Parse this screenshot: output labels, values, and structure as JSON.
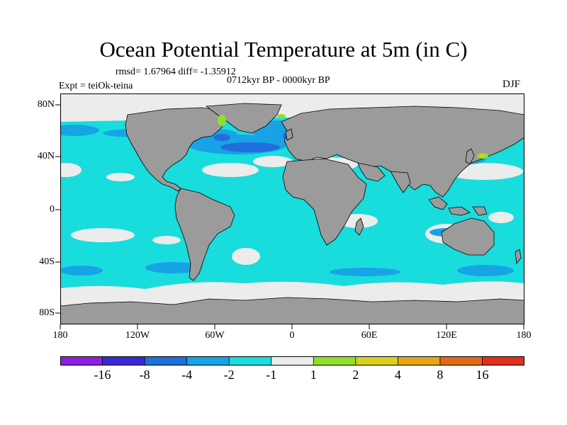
{
  "title": "Ocean Potential Temperature at 5m (in C)",
  "stats": "rmsd= 1.67964  diff= -1.35912",
  "period": "0712kyr BP - 0000kyr BP",
  "experiment": "Expt = teiOk-teina",
  "season": "DJF",
  "latitude_labels": [
    "80N",
    "40N",
    "0",
    "40S",
    "80S"
  ],
  "longitude_labels": [
    "180",
    "120W",
    "60W",
    "0",
    "60E",
    "120E",
    "180"
  ],
  "colorbar": {
    "labels": [
      "-16",
      "-8",
      "-4",
      "-2",
      "-1",
      "1",
      "2",
      "4",
      "8",
      "16"
    ],
    "colors": [
      "#8f1fe0",
      "#3a28d4",
      "#1f6fdc",
      "#18a3e6",
      "#19dcdc",
      "#ececec",
      "#8ee02a",
      "#d8d020",
      "#e8a418",
      "#e06a18",
      "#e0301c"
    ]
  },
  "palette": {
    "land": "#9b9b9b",
    "cyan": "#19dcdc",
    "light_blue": "#18a3e6",
    "blue": "#1f6fdc",
    "near_zero": "#ececec",
    "green": "#8ee02a",
    "yellow": "#d8d020"
  }
}
